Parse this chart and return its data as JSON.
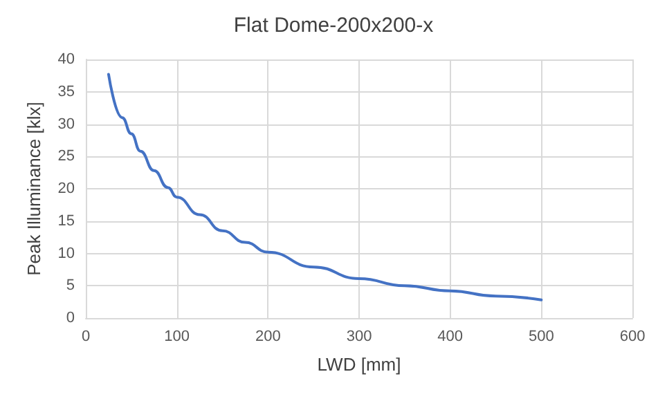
{
  "chart_data": {
    "type": "line",
    "title": "Flat Dome-200x200-x",
    "xlabel": "LWD [mm]",
    "ylabel": "Peak Illuminance [klx]",
    "x": [
      25,
      40,
      50,
      60,
      75,
      90,
      100,
      125,
      150,
      175,
      200,
      250,
      300,
      350,
      400,
      450,
      500
    ],
    "series": [
      {
        "color": "#4472c4",
        "values": [
          37.7,
          31.0,
          28.5,
          25.8,
          22.8,
          20.2,
          18.7,
          16.0,
          13.5,
          11.7,
          10.2,
          7.9,
          6.1,
          5.0,
          4.2,
          3.4,
          2.8
        ]
      }
    ],
    "xlim": [
      0,
      600
    ],
    "xticks": [
      0,
      100,
      200,
      300,
      400,
      500,
      600
    ],
    "ylim": [
      0,
      40
    ],
    "yticks": [
      0,
      5,
      10,
      15,
      20,
      25,
      30,
      35,
      40
    ],
    "grid": true,
    "marker": "none",
    "line_style": "solid"
  }
}
